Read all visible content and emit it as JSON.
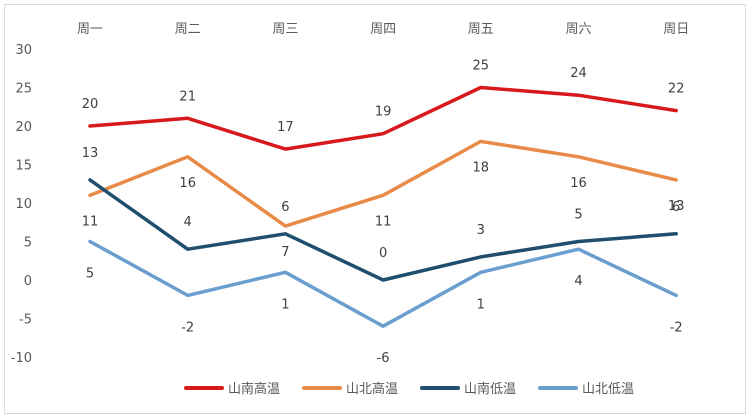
{
  "chart_data": {
    "type": "line",
    "title": "",
    "xlabel": "",
    "ylabel": "",
    "categories": [
      "周一",
      "周二",
      "周三",
      "周四",
      "周五",
      "周六",
      "周日"
    ],
    "ylim": [
      -10,
      30
    ],
    "yticks": [
      30,
      25,
      20,
      15,
      10,
      5,
      0,
      -5,
      -10
    ],
    "grid": false,
    "legend_position": "bottom",
    "x_axis_position": "top",
    "series": [
      {
        "name": "山南高温",
        "color": "#d7191c",
        "values": [
          20,
          21,
          17,
          19,
          25,
          24,
          22
        ]
      },
      {
        "name": "山北高温",
        "color": "#e88a48",
        "values": [
          11,
          16,
          7,
          11,
          18,
          16,
          13
        ]
      },
      {
        "name": "山南低温",
        "color": "#1f4e6e",
        "values": [
          13,
          4,
          6,
          0,
          3,
          5,
          6
        ]
      },
      {
        "name": "山北低温",
        "color": "#6a9ecf",
        "values": [
          5,
          -2,
          1,
          -6,
          1,
          4,
          -2
        ]
      }
    ]
  }
}
